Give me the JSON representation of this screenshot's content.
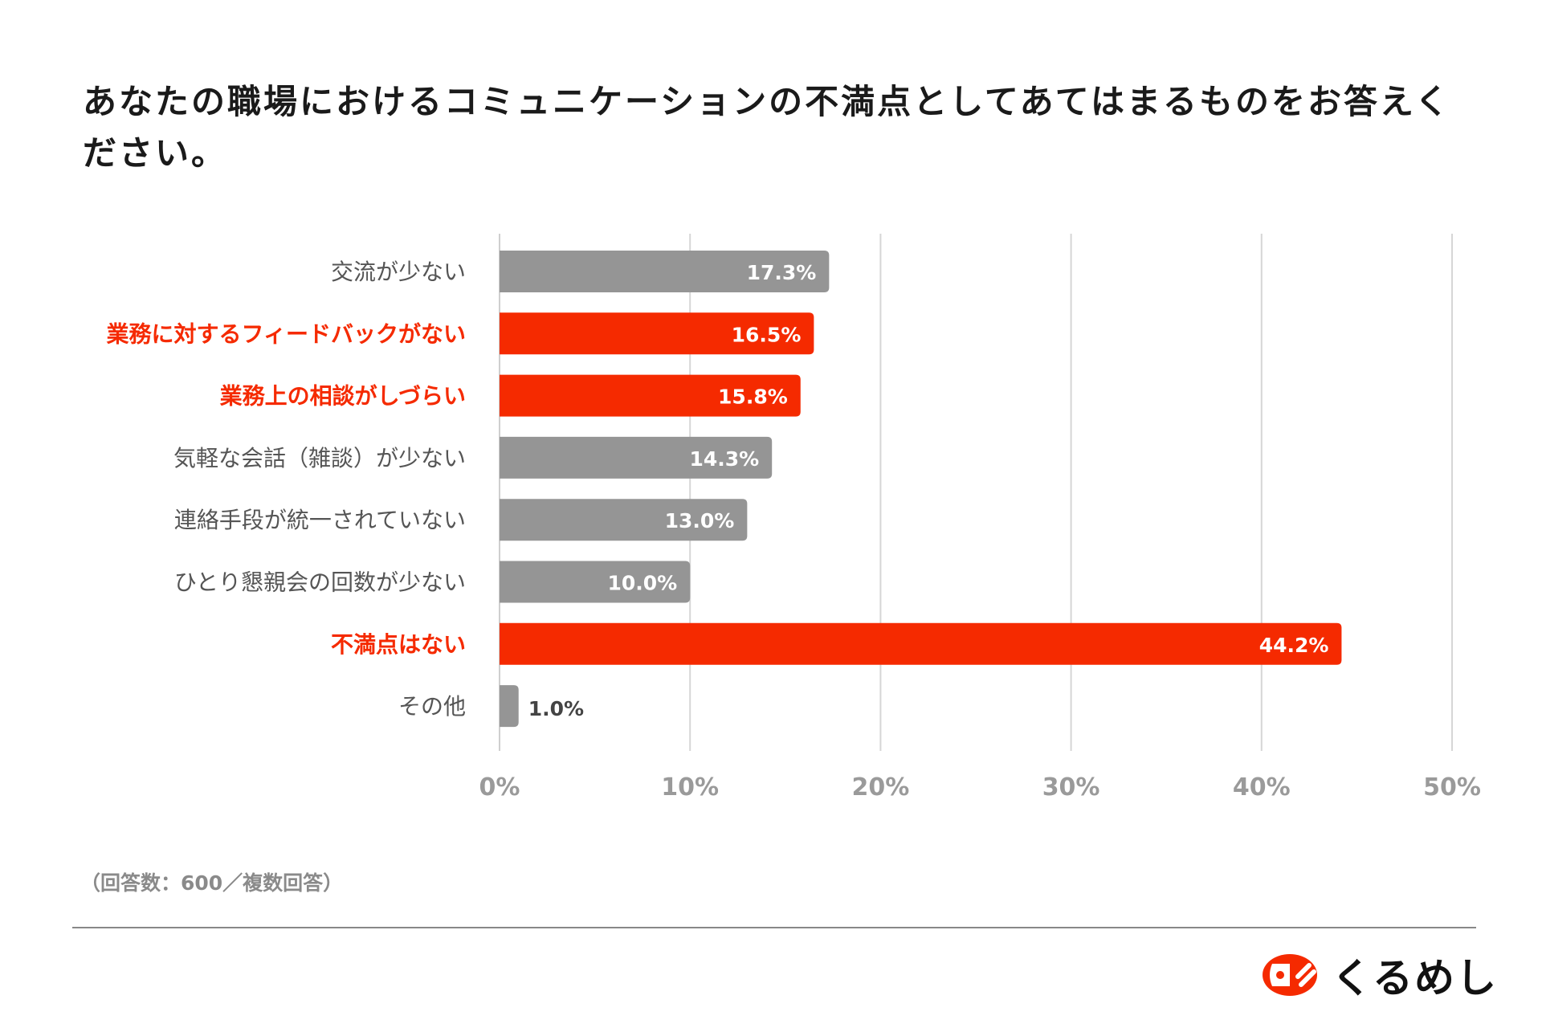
{
  "chart_data": {
    "type": "bar",
    "orientation": "horizontal",
    "title": "あなたの職場におけるコミュニケーションの不満点としてあてはまるものをお答えください。",
    "categories": [
      "交流が少ない",
      "業務に対するフィードバックがない",
      "業務上の相談がしづらい",
      "気軽な会話（雑談）が少ない",
      "連絡手段が統一されていない",
      "ひとり懇親会の回数が少ない",
      "不満点はない",
      "その他"
    ],
    "values": [
      17.3,
      16.5,
      15.8,
      14.3,
      13.0,
      10.0,
      44.2,
      1.0
    ],
    "value_labels": [
      "17.3%",
      "16.5%",
      "15.8%",
      "14.3%",
      "13.0%",
      "10.0%",
      "44.2%",
      "1.0%"
    ],
    "highlighted": [
      false,
      true,
      true,
      false,
      false,
      false,
      true,
      false
    ],
    "xlim": [
      0,
      50
    ],
    "xticks": [
      "0%",
      "10%",
      "20%",
      "30%",
      "40%",
      "50%"
    ],
    "grid": true,
    "xlabel": "",
    "ylabel": ""
  },
  "colors": {
    "normal": "#959595",
    "highlight": "#f52a00",
    "label": "#555555",
    "tick": "#9a9a9a"
  },
  "note": "（回答数：600／複数回答）",
  "logo": {
    "text": "くるめし"
  }
}
